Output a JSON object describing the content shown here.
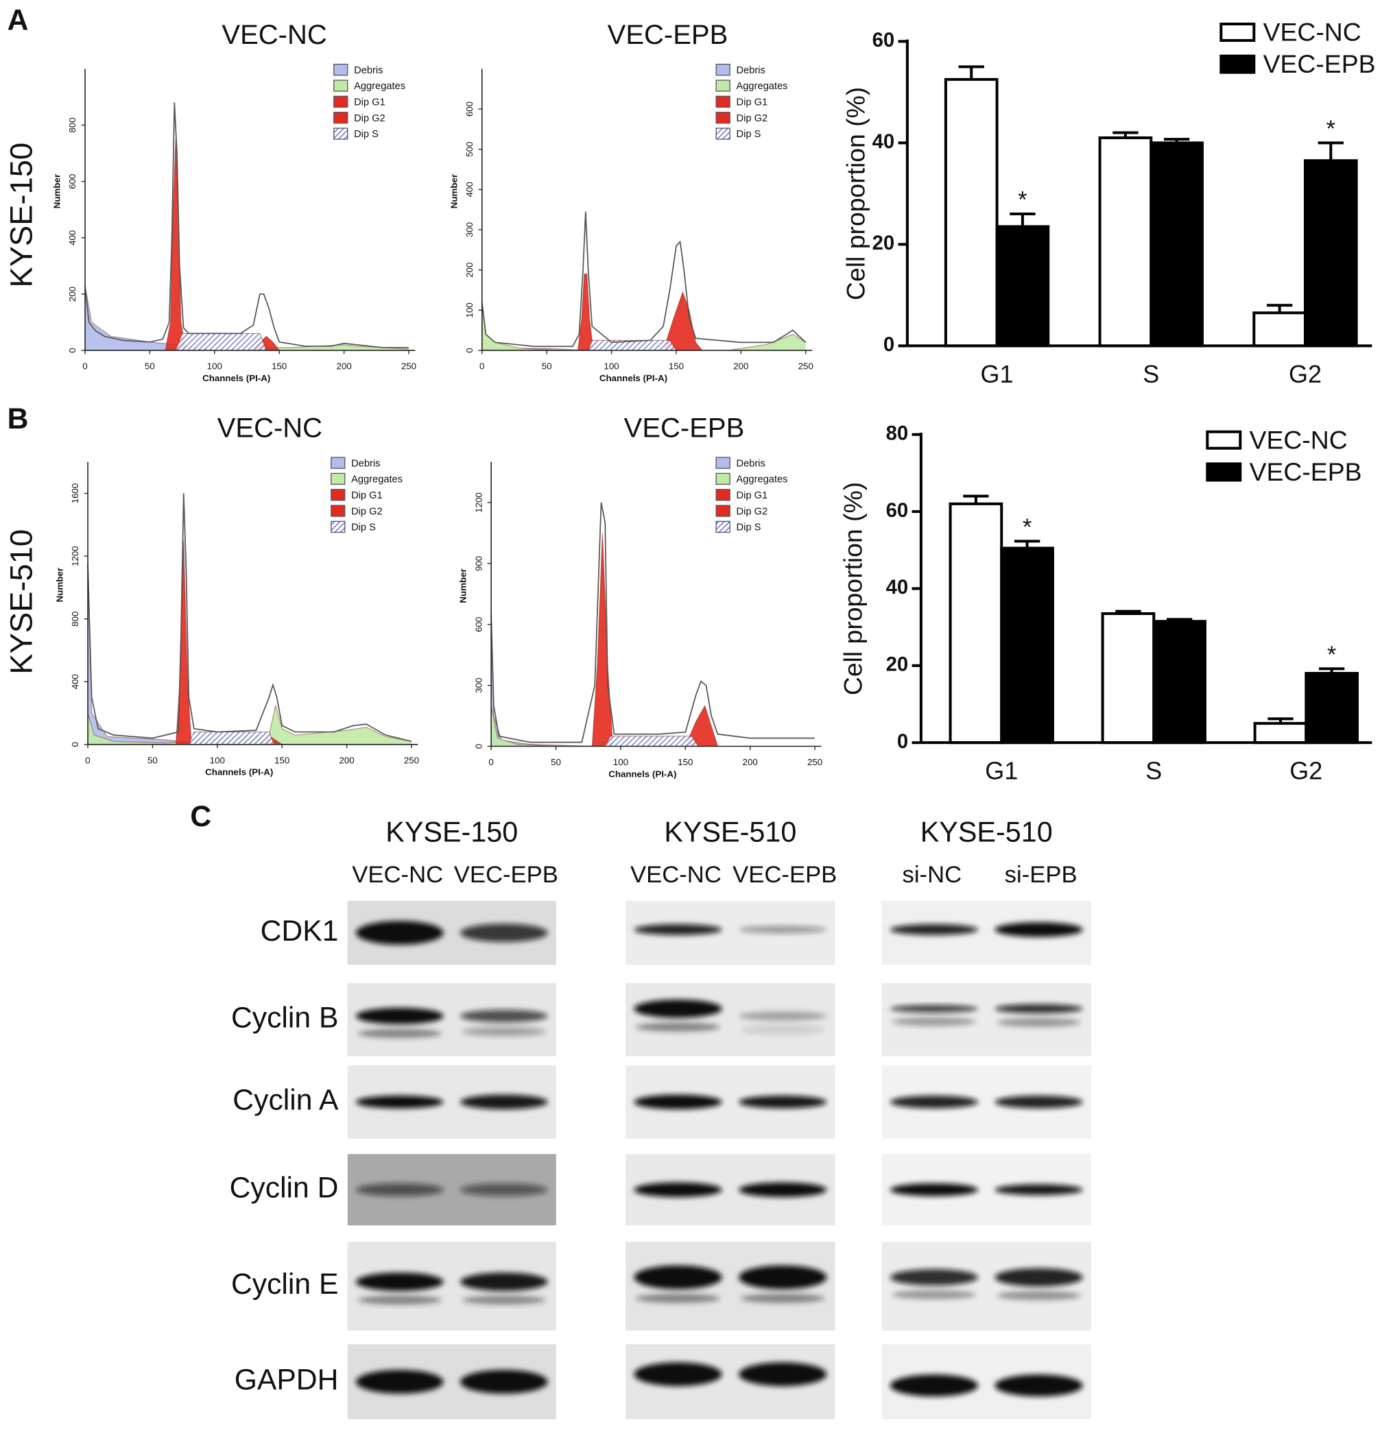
{
  "panel_labels": [
    "A",
    "B",
    "C"
  ],
  "row_labels": [
    "KYSE-150",
    "KYSE-510"
  ],
  "chart_data": [
    {
      "type": "area",
      "title": "VEC-NC",
      "x_label": "Channels (PI-A)",
      "y_label": "Number",
      "xlim": [
        0,
        255
      ],
      "xticks": [
        0,
        50,
        100,
        150,
        200,
        250
      ],
      "ylim": [
        0,
        1000
      ],
      "yticks": [
        0,
        200,
        400,
        600,
        800
      ],
      "legend_text_color": "#1a2fb8",
      "series": [
        {
          "name": "Debris",
          "color": "#b3bcec",
          "x": [
            0,
            5,
            20,
            50,
            70,
            100
          ],
          "values": [
            230,
            100,
            50,
            30,
            20,
            0
          ]
        },
        {
          "name": "Aggregates",
          "color": "#c2eaa6",
          "x": [
            130,
            140,
            160,
            200,
            210,
            250
          ],
          "values": [
            0,
            10,
            10,
            20,
            15,
            5
          ]
        },
        {
          "name": "Dip G1",
          "color": "#e42a1e",
          "x": [
            62,
            66,
            68,
            70,
            72,
            74,
            78
          ],
          "values": [
            0,
            100,
            500,
            750,
            500,
            100,
            0
          ]
        },
        {
          "name": "Dip G2",
          "color": "#e42a1e",
          "x": [
            128,
            135,
            140,
            145,
            150
          ],
          "values": [
            0,
            30,
            50,
            30,
            0
          ]
        },
        {
          "name": "Dip S",
          "color": "#5a66c4",
          "pattern": "hatch",
          "x": [
            70,
            75,
            135,
            140
          ],
          "values": [
            0,
            60,
            60,
            0
          ]
        },
        {
          "color": "#555555",
          "x": [
            0,
            3,
            8,
            15,
            30,
            50,
            60,
            65,
            67,
            69,
            71,
            73,
            76,
            80,
            100,
            120,
            130,
            135,
            138,
            142,
            146,
            150,
            170,
            190,
            200,
            210,
            230,
            250
          ],
          "values": [
            230,
            100,
            70,
            50,
            35,
            30,
            40,
            100,
            400,
            880,
            700,
            300,
            80,
            60,
            60,
            60,
            90,
            200,
            200,
            150,
            80,
            30,
            15,
            15,
            25,
            20,
            10,
            10
          ]
        }
      ]
    },
    {
      "type": "area",
      "title": "VEC-EPB",
      "x_label": "Channels (PI-A)",
      "y_label": "Number",
      "xlim": [
        0,
        255
      ],
      "xticks": [
        0,
        50,
        100,
        150,
        200,
        250
      ],
      "ylim": [
        0,
        700
      ],
      "yticks": [
        0,
        100,
        200,
        300,
        400,
        500,
        600
      ],
      "legend_text_color": "#1a2fb8",
      "series": [
        {
          "name": "Debris",
          "color": "#b3bcec",
          "x": [
            0,
            50,
            80
          ],
          "values": [
            5,
            5,
            0
          ]
        },
        {
          "name": "Aggregates",
          "color": "#c2eaa6",
          "x": [
            0,
            3,
            10,
            30,
            60,
            120,
            190,
            220,
            240,
            250
          ],
          "values": [
            120,
            40,
            20,
            5,
            0,
            null,
            0,
            15,
            40,
            20
          ]
        },
        {
          "name": "Dip G1",
          "color": "#e42a1e",
          "x": [
            74,
            77,
            79,
            81,
            83,
            86
          ],
          "values": [
            0,
            80,
            190,
            190,
            80,
            0
          ]
        },
        {
          "name": "Dip G2",
          "color": "#e42a1e",
          "x": [
            140,
            148,
            155,
            160,
            165,
            170
          ],
          "values": [
            0,
            80,
            145,
            100,
            20,
            0
          ]
        },
        {
          "name": "Dip S",
          "color": "#5a66c4",
          "pattern": "hatch",
          "x": [
            82,
            85,
            145,
            150
          ],
          "values": [
            0,
            25,
            25,
            0
          ]
        },
        {
          "color": "#555555",
          "x": [
            0,
            3,
            10,
            40,
            70,
            75,
            78,
            80,
            82,
            85,
            100,
            130,
            140,
            145,
            150,
            153,
            156,
            160,
            165,
            200,
            225,
            240,
            250
          ],
          "values": [
            120,
            40,
            20,
            10,
            10,
            40,
            200,
            345,
            200,
            60,
            20,
            25,
            60,
            150,
            260,
            270,
            200,
            80,
            30,
            20,
            20,
            50,
            20
          ]
        }
      ]
    },
    {
      "type": "bar",
      "y_label": "Cell proportion (%)",
      "categories": [
        "G1",
        "S",
        "G2"
      ],
      "ylim": [
        0,
        60
      ],
      "yticks": [
        0,
        20,
        40,
        60
      ],
      "series": [
        {
          "name": "VEC-NC",
          "color": "#ffffff",
          "values": [
            52.5,
            41,
            6.5
          ],
          "errors": [
            2.5,
            1,
            1.5
          ]
        },
        {
          "name": "VEC-EPB",
          "color": "#000000",
          "values": [
            23.5,
            40,
            36.5
          ],
          "errors": [
            2.5,
            0.7,
            3.5
          ]
        }
      ],
      "annotations": [
        {
          "text": "*",
          "category": "G1",
          "series": "VEC-EPB"
        },
        {
          "text": "*",
          "category": "G2",
          "series": "VEC-EPB"
        }
      ]
    },
    {
      "type": "area",
      "title": "VEC-NC",
      "x_label": "Channels (PI-A)",
      "y_label": "Number",
      "xlim": [
        0,
        255
      ],
      "xticks": [
        0,
        50,
        100,
        150,
        200,
        250
      ],
      "ylim": [
        0,
        1800
      ],
      "yticks": [
        0,
        400,
        800,
        1200,
        1600
      ],
      "legend_text_color": "#1a2fb8",
      "series": [
        {
          "name": "Debris",
          "color": "#b3bcec",
          "x": [
            0,
            3,
            15,
            60,
            90
          ],
          "values": [
            1150,
            200,
            50,
            30,
            0
          ]
        },
        {
          "name": "Aggregates",
          "color": "#c2eaa6",
          "x": [
            0,
            5,
            20,
            60,
            140,
            145,
            150,
            160,
            200,
            215,
            230,
            250
          ],
          "values": [
            200,
            60,
            20,
            10,
            60,
            250,
            100,
            60,
            90,
            110,
            50,
            20
          ]
        },
        {
          "name": "Dip G1",
          "color": "#e42a1e",
          "x": [
            68,
            71,
            74,
            77,
            80
          ],
          "values": [
            0,
            400,
            1300,
            400,
            0
          ]
        },
        {
          "name": "Dip G2",
          "color": "#e42a1e",
          "x": [
            133,
            141,
            150
          ],
          "values": [
            0,
            50,
            0
          ]
        },
        {
          "name": "Dip S",
          "color": "#5a66c4",
          "pattern": "hatch",
          "x": [
            78,
            82,
            140,
            144
          ],
          "values": [
            0,
            80,
            80,
            0
          ]
        },
        {
          "color": "#555555",
          "x": [
            0,
            3,
            8,
            20,
            50,
            70,
            72,
            74,
            76,
            78,
            82,
            100,
            130,
            140,
            143,
            146,
            150,
            160,
            190,
            205,
            215,
            230,
            250
          ],
          "values": [
            1150,
            300,
            100,
            60,
            40,
            80,
            700,
            1600,
            1100,
            300,
            100,
            80,
            90,
            300,
            380,
            300,
            120,
            80,
            80,
            120,
            130,
            60,
            20
          ]
        }
      ]
    },
    {
      "type": "area",
      "title": "VEC-EPB",
      "x_label": "Channels (PI-A)",
      "y_label": "Number",
      "xlim": [
        0,
        255
      ],
      "xticks": [
        0,
        50,
        100,
        150,
        200,
        250
      ],
      "ylim": [
        0,
        1400
      ],
      "yticks": [
        0,
        300,
        600,
        900,
        1200
      ],
      "legend_text_color": "#1a2fb8",
      "series": [
        {
          "name": "Debris",
          "color": "#b3bcec",
          "x": [
            0,
            2,
            8,
            30,
            80
          ],
          "values": [
            650,
            150,
            30,
            10,
            0
          ]
        },
        {
          "name": "Aggregates",
          "color": "#c2eaa6",
          "x": [
            0,
            5,
            20,
            50
          ],
          "values": [
            200,
            40,
            10,
            0
          ]
        },
        {
          "name": "Dip G1",
          "color": "#e42a1e",
          "x": [
            78,
            82,
            86,
            90,
            94
          ],
          "values": [
            0,
            400,
            1050,
            400,
            0
          ]
        },
        {
          "name": "Dip G2",
          "color": "#e42a1e",
          "x": [
            150,
            158,
            165,
            170,
            175
          ],
          "values": [
            0,
            120,
            200,
            100,
            0
          ]
        },
        {
          "name": "Dip S",
          "color": "#5a66c4",
          "pattern": "hatch",
          "x": [
            88,
            92,
            155,
            160
          ],
          "values": [
            0,
            50,
            50,
            0
          ]
        },
        {
          "color": "#555555",
          "x": [
            0,
            2,
            6,
            30,
            70,
            80,
            85,
            88,
            90,
            95,
            130,
            150,
            158,
            162,
            166,
            170,
            175,
            200,
            250
          ],
          "values": [
            650,
            200,
            50,
            20,
            20,
            300,
            1200,
            1100,
            300,
            60,
            60,
            70,
            250,
            320,
            300,
            150,
            60,
            40,
            40
          ]
        }
      ]
    },
    {
      "type": "bar",
      "y_label": "Cell proportion (%)",
      "categories": [
        "G1",
        "S",
        "G2"
      ],
      "ylim": [
        0,
        80
      ],
      "yticks": [
        0,
        20,
        40,
        60,
        80
      ],
      "series": [
        {
          "name": "VEC-NC",
          "color": "#ffffff",
          "values": [
            62,
            33.5,
            5
          ],
          "errors": [
            2,
            0.6,
            1.2
          ]
        },
        {
          "name": "VEC-EPB",
          "color": "#000000",
          "values": [
            50.5,
            31.5,
            18
          ],
          "errors": [
            1.8,
            0.5,
            1.2
          ]
        }
      ],
      "annotations": [
        {
          "text": "*",
          "category": "G1",
          "series": "VEC-EPB"
        },
        {
          "text": "*",
          "category": "G2",
          "series": "VEC-EPB"
        }
      ]
    }
  ],
  "blot": {
    "groups": [
      {
        "title": "KYSE-150",
        "lanes": [
          "VEC-NC",
          "VEC-EPB"
        ]
      },
      {
        "title": "KYSE-510",
        "lanes": [
          "VEC-NC",
          "VEC-EPB"
        ]
      },
      {
        "title": "KYSE-510",
        "lanes": [
          "si-NC",
          "si-EPB"
        ]
      }
    ],
    "proteins": [
      "CDK1",
      "Cyclin B",
      "Cyclin A",
      "Cyclin D",
      "Cyclin E",
      "GAPDH"
    ]
  }
}
